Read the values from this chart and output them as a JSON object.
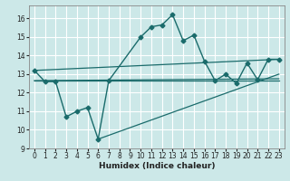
{
  "xlabel": "Humidex (Indice chaleur)",
  "background_color": "#cce8e8",
  "grid_color": "#ffffff",
  "line_color": "#1a6b6b",
  "xlim": [
    -0.5,
    23.5
  ],
  "ylim": [
    9,
    16.7
  ],
  "yticks": [
    9,
    10,
    11,
    12,
    13,
    14,
    15,
    16
  ],
  "xticks": [
    0,
    1,
    2,
    3,
    4,
    5,
    6,
    7,
    8,
    9,
    10,
    11,
    12,
    13,
    14,
    15,
    16,
    17,
    18,
    19,
    20,
    21,
    22,
    23
  ],
  "main_x": [
    0,
    1,
    2,
    3,
    4,
    5,
    6,
    7,
    10,
    11,
    12,
    13,
    14,
    15,
    16,
    17,
    18,
    19,
    20,
    21,
    22,
    23
  ],
  "main_y": [
    13.2,
    12.6,
    12.6,
    10.7,
    11.0,
    11.2,
    9.5,
    12.65,
    15.0,
    15.55,
    15.65,
    16.2,
    14.8,
    15.1,
    13.7,
    12.65,
    13.0,
    12.5,
    13.6,
    12.7,
    13.8,
    13.8
  ],
  "straight_lines": [
    {
      "x": [
        0,
        23
      ],
      "y": [
        13.2,
        13.8
      ]
    },
    {
      "x": [
        0,
        23
      ],
      "y": [
        12.65,
        12.65
      ]
    },
    {
      "x": [
        0,
        23
      ],
      "y": [
        12.65,
        12.75
      ]
    },
    {
      "x": [
        6,
        23
      ],
      "y": [
        9.5,
        13.0
      ]
    }
  ]
}
